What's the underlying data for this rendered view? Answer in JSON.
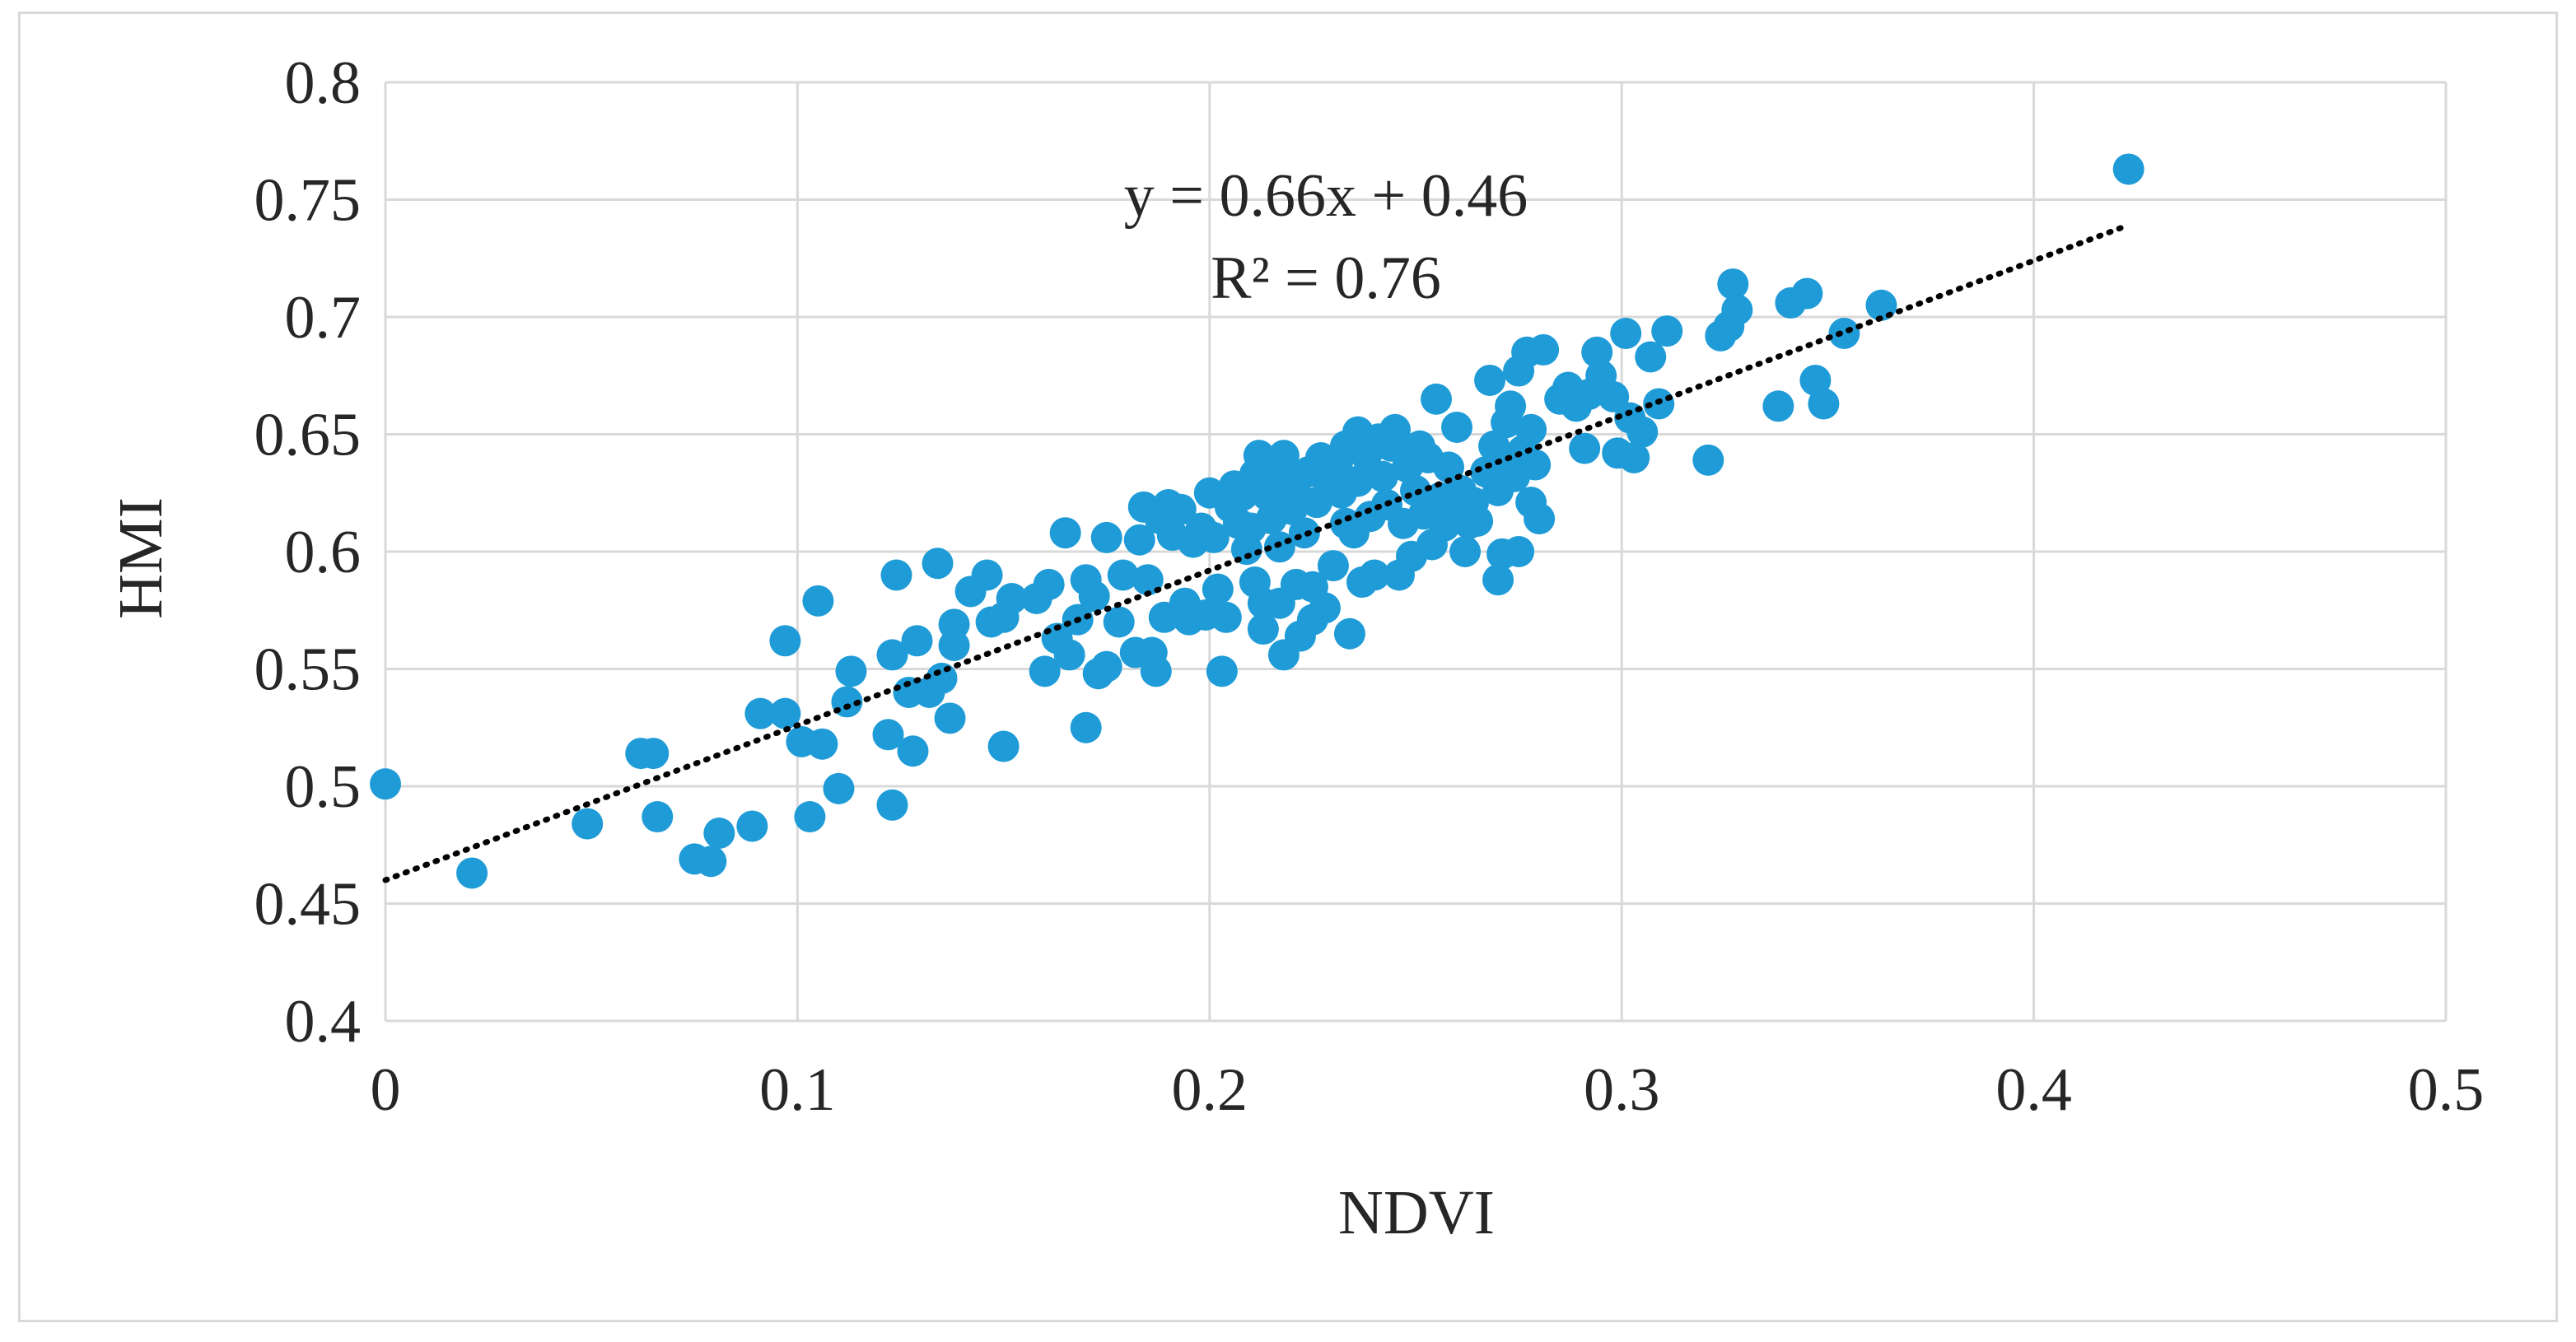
{
  "chart_data": {
    "type": "scatter",
    "title": "",
    "xlabel": "NDVI",
    "ylabel": "HMI",
    "xlim": [
      0,
      0.5
    ],
    "ylim": [
      0.4,
      0.8
    ],
    "x_ticks": [
      "0",
      "0.1",
      "0.2",
      "0.3",
      "0.4",
      "0.5"
    ],
    "y_ticks": [
      "0.4",
      "0.45",
      "0.5",
      "0.55",
      "0.6",
      "0.65",
      "0.7",
      "0.75",
      "0.8"
    ],
    "x_tick_values": [
      0,
      0.1,
      0.2,
      0.3,
      0.4,
      0.5
    ],
    "y_tick_values": [
      0.4,
      0.45,
      0.5,
      0.55,
      0.6,
      0.65,
      0.7,
      0.75,
      0.8
    ],
    "grid": true,
    "legend": "none",
    "marker_color": "#1f9bd7",
    "trendline": {
      "type": "linear",
      "slope": 0.66,
      "intercept": 0.46,
      "x_range": [
        0,
        0.423
      ],
      "style": "dotted",
      "color": "#000000"
    },
    "annotations": [
      "y = 0.66x + 0.46",
      "R² = 0.76"
    ],
    "points": [
      [
        0.0,
        0.501
      ],
      [
        0.021,
        0.463
      ],
      [
        0.049,
        0.484
      ],
      [
        0.062,
        0.514
      ],
      [
        0.065,
        0.514
      ],
      [
        0.066,
        0.487
      ],
      [
        0.075,
        0.469
      ],
      [
        0.079,
        0.468
      ],
      [
        0.081,
        0.48
      ],
      [
        0.089,
        0.483
      ],
      [
        0.091,
        0.531
      ],
      [
        0.097,
        0.531
      ],
      [
        0.097,
        0.562
      ],
      [
        0.101,
        0.519
      ],
      [
        0.103,
        0.487
      ],
      [
        0.105,
        0.579
      ],
      [
        0.106,
        0.518
      ],
      [
        0.11,
        0.499
      ],
      [
        0.112,
        0.536
      ],
      [
        0.113,
        0.549
      ],
      [
        0.122,
        0.522
      ],
      [
        0.123,
        0.492
      ],
      [
        0.123,
        0.556
      ],
      [
        0.124,
        0.59
      ],
      [
        0.127,
        0.54
      ],
      [
        0.128,
        0.515
      ],
      [
        0.129,
        0.562
      ],
      [
        0.132,
        0.54
      ],
      [
        0.134,
        0.595
      ],
      [
        0.135,
        0.546
      ],
      [
        0.137,
        0.529
      ],
      [
        0.138,
        0.56
      ],
      [
        0.138,
        0.569
      ],
      [
        0.142,
        0.583
      ],
      [
        0.146,
        0.59
      ],
      [
        0.147,
        0.57
      ],
      [
        0.15,
        0.572
      ],
      [
        0.15,
        0.517
      ],
      [
        0.152,
        0.58
      ],
      [
        0.158,
        0.58
      ],
      [
        0.16,
        0.549
      ],
      [
        0.161,
        0.586
      ],
      [
        0.163,
        0.563
      ],
      [
        0.165,
        0.608
      ],
      [
        0.166,
        0.556
      ],
      [
        0.168,
        0.571
      ],
      [
        0.17,
        0.525
      ],
      [
        0.17,
        0.588
      ],
      [
        0.172,
        0.581
      ],
      [
        0.173,
        0.548
      ],
      [
        0.175,
        0.551
      ],
      [
        0.175,
        0.606
      ],
      [
        0.178,
        0.57
      ],
      [
        0.179,
        0.59
      ],
      [
        0.182,
        0.557
      ],
      [
        0.183,
        0.605
      ],
      [
        0.184,
        0.619
      ],
      [
        0.185,
        0.588
      ],
      [
        0.186,
        0.557
      ],
      [
        0.187,
        0.549
      ],
      [
        0.188,
        0.614
      ],
      [
        0.189,
        0.572
      ],
      [
        0.19,
        0.62
      ],
      [
        0.191,
        0.607
      ],
      [
        0.193,
        0.618
      ],
      [
        0.194,
        0.578
      ],
      [
        0.195,
        0.571
      ],
      [
        0.196,
        0.604
      ],
      [
        0.198,
        0.61
      ],
      [
        0.199,
        0.573
      ],
      [
        0.2,
        0.625
      ],
      [
        0.201,
        0.606
      ],
      [
        0.202,
        0.584
      ],
      [
        0.203,
        0.549
      ],
      [
        0.204,
        0.572
      ],
      [
        0.205,
        0.619
      ],
      [
        0.206,
        0.628
      ],
      [
        0.207,
        0.612
      ],
      [
        0.208,
        0.624
      ],
      [
        0.209,
        0.601
      ],
      [
        0.21,
        0.61
      ],
      [
        0.211,
        0.587
      ],
      [
        0.211,
        0.633
      ],
      [
        0.212,
        0.641
      ],
      [
        0.213,
        0.578
      ],
      [
        0.213,
        0.567
      ],
      [
        0.214,
        0.624
      ],
      [
        0.215,
        0.614
      ],
      [
        0.216,
        0.636
      ],
      [
        0.217,
        0.602
      ],
      [
        0.217,
        0.578
      ],
      [
        0.218,
        0.641
      ],
      [
        0.218,
        0.556
      ],
      [
        0.219,
        0.625
      ],
      [
        0.22,
        0.618
      ],
      [
        0.221,
        0.63
      ],
      [
        0.221,
        0.586
      ],
      [
        0.222,
        0.564
      ],
      [
        0.223,
        0.608
      ],
      [
        0.224,
        0.634
      ],
      [
        0.225,
        0.571
      ],
      [
        0.225,
        0.585
      ],
      [
        0.226,
        0.621
      ],
      [
        0.227,
        0.64
      ],
      [
        0.228,
        0.576
      ],
      [
        0.229,
        0.629
      ],
      [
        0.23,
        0.594
      ],
      [
        0.231,
        0.638
      ],
      [
        0.232,
        0.625
      ],
      [
        0.233,
        0.612
      ],
      [
        0.233,
        0.645
      ],
      [
        0.234,
        0.565
      ],
      [
        0.235,
        0.608
      ],
      [
        0.236,
        0.651
      ],
      [
        0.236,
        0.63
      ],
      [
        0.237,
        0.587
      ],
      [
        0.238,
        0.641
      ],
      [
        0.239,
        0.615
      ],
      [
        0.24,
        0.59
      ],
      [
        0.241,
        0.648
      ],
      [
        0.242,
        0.632
      ],
      [
        0.243,
        0.62
      ],
      [
        0.244,
        0.645
      ],
      [
        0.245,
        0.652
      ],
      [
        0.246,
        0.59
      ],
      [
        0.247,
        0.612
      ],
      [
        0.248,
        0.636
      ],
      [
        0.249,
        0.598
      ],
      [
        0.25,
        0.626
      ],
      [
        0.251,
        0.645
      ],
      [
        0.252,
        0.616
      ],
      [
        0.253,
        0.64
      ],
      [
        0.254,
        0.603
      ],
      [
        0.255,
        0.665
      ],
      [
        0.256,
        0.623
      ],
      [
        0.257,
        0.611
      ],
      [
        0.258,
        0.636
      ],
      [
        0.259,
        0.618
      ],
      [
        0.26,
        0.653
      ],
      [
        0.261,
        0.626
      ],
      [
        0.262,
        0.6
      ],
      [
        0.263,
        0.612
      ],
      [
        0.264,
        0.621
      ],
      [
        0.265,
        0.613
      ],
      [
        0.267,
        0.634
      ],
      [
        0.268,
        0.673
      ],
      [
        0.269,
        0.645
      ],
      [
        0.27,
        0.626
      ],
      [
        0.27,
        0.588
      ],
      [
        0.271,
        0.599
      ],
      [
        0.272,
        0.637
      ],
      [
        0.272,
        0.655
      ],
      [
        0.273,
        0.662
      ],
      [
        0.274,
        0.632
      ],
      [
        0.275,
        0.677
      ],
      [
        0.275,
        0.6
      ],
      [
        0.276,
        0.643
      ],
      [
        0.277,
        0.685
      ],
      [
        0.278,
        0.652
      ],
      [
        0.278,
        0.621
      ],
      [
        0.279,
        0.637
      ],
      [
        0.28,
        0.614
      ],
      [
        0.281,
        0.686
      ],
      [
        0.285,
        0.665
      ],
      [
        0.287,
        0.67
      ],
      [
        0.289,
        0.662
      ],
      [
        0.291,
        0.644
      ],
      [
        0.292,
        0.667
      ],
      [
        0.294,
        0.685
      ],
      [
        0.295,
        0.675
      ],
      [
        0.298,
        0.666
      ],
      [
        0.299,
        0.642
      ],
      [
        0.301,
        0.693
      ],
      [
        0.302,
        0.657
      ],
      [
        0.303,
        0.64
      ],
      [
        0.305,
        0.651
      ],
      [
        0.307,
        0.683
      ],
      [
        0.309,
        0.663
      ],
      [
        0.311,
        0.694
      ],
      [
        0.321,
        0.639
      ],
      [
        0.324,
        0.692
      ],
      [
        0.326,
        0.696
      ],
      [
        0.327,
        0.714
      ],
      [
        0.328,
        0.703
      ],
      [
        0.338,
        0.662
      ],
      [
        0.341,
        0.706
      ],
      [
        0.345,
        0.71
      ],
      [
        0.347,
        0.673
      ],
      [
        0.349,
        0.663
      ],
      [
        0.354,
        0.693
      ],
      [
        0.363,
        0.705
      ],
      [
        0.423,
        0.763
      ]
    ]
  }
}
